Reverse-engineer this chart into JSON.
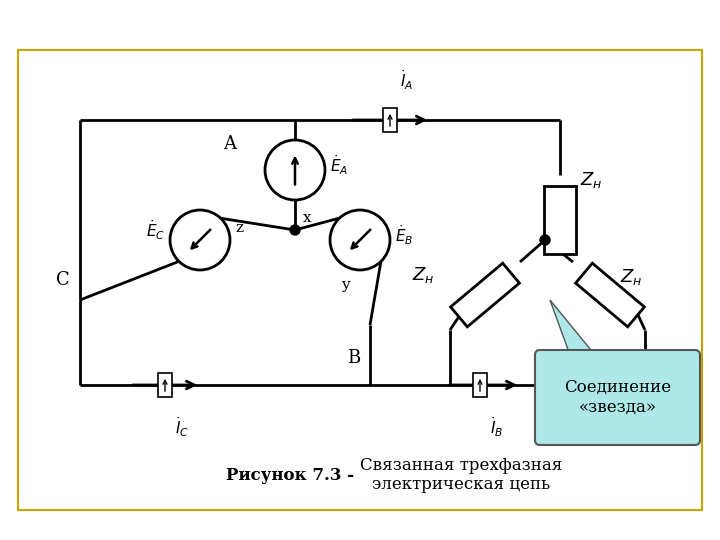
{
  "bg": "#ffffff",
  "border_color": "#c8a000",
  "cc": "#000000",
  "callout_bg": "#aee8e8",
  "title_bold": "Рисунок 7.3 - ",
  "title_normal": "Связанная трехфазная\nэлектрическая цепь",
  "callout_text": "Соединение\n«звезда»"
}
